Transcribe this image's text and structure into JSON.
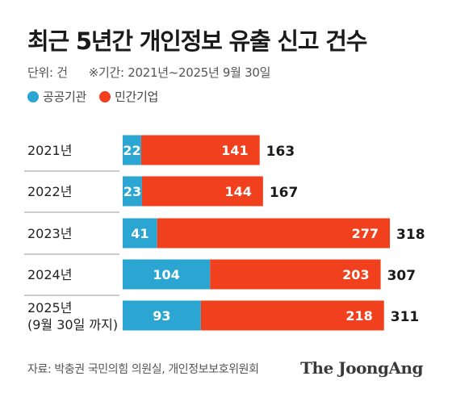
{
  "chart_data": {
    "type": "bar",
    "orientation": "horizontal",
    "stacked": true,
    "title": "최근 5년간 개인정보 유출 신고 건수",
    "unit_note": "단위: 건",
    "period_note": "※기간: 2021년~2025년 9월 30일",
    "categories": [
      "2021년",
      "2022년",
      "2023년",
      "2024년",
      "2025년|(9월 30일 까지)"
    ],
    "series": [
      {
        "name": "공공기관",
        "color": "#2ba5d1",
        "values": [
          22,
          23,
          41,
          104,
          93
        ]
      },
      {
        "name": "민간기업",
        "color": "#f0401e",
        "values": [
          141,
          144,
          277,
          203,
          218
        ]
      }
    ],
    "totals": [
      163,
      167,
      318,
      307,
      311
    ],
    "grid": false,
    "legend_position": "top-left"
  },
  "source": "자료: 박충권 국민의힘 의원실, 개인정보보호위원회",
  "brand": "The JoongAng"
}
